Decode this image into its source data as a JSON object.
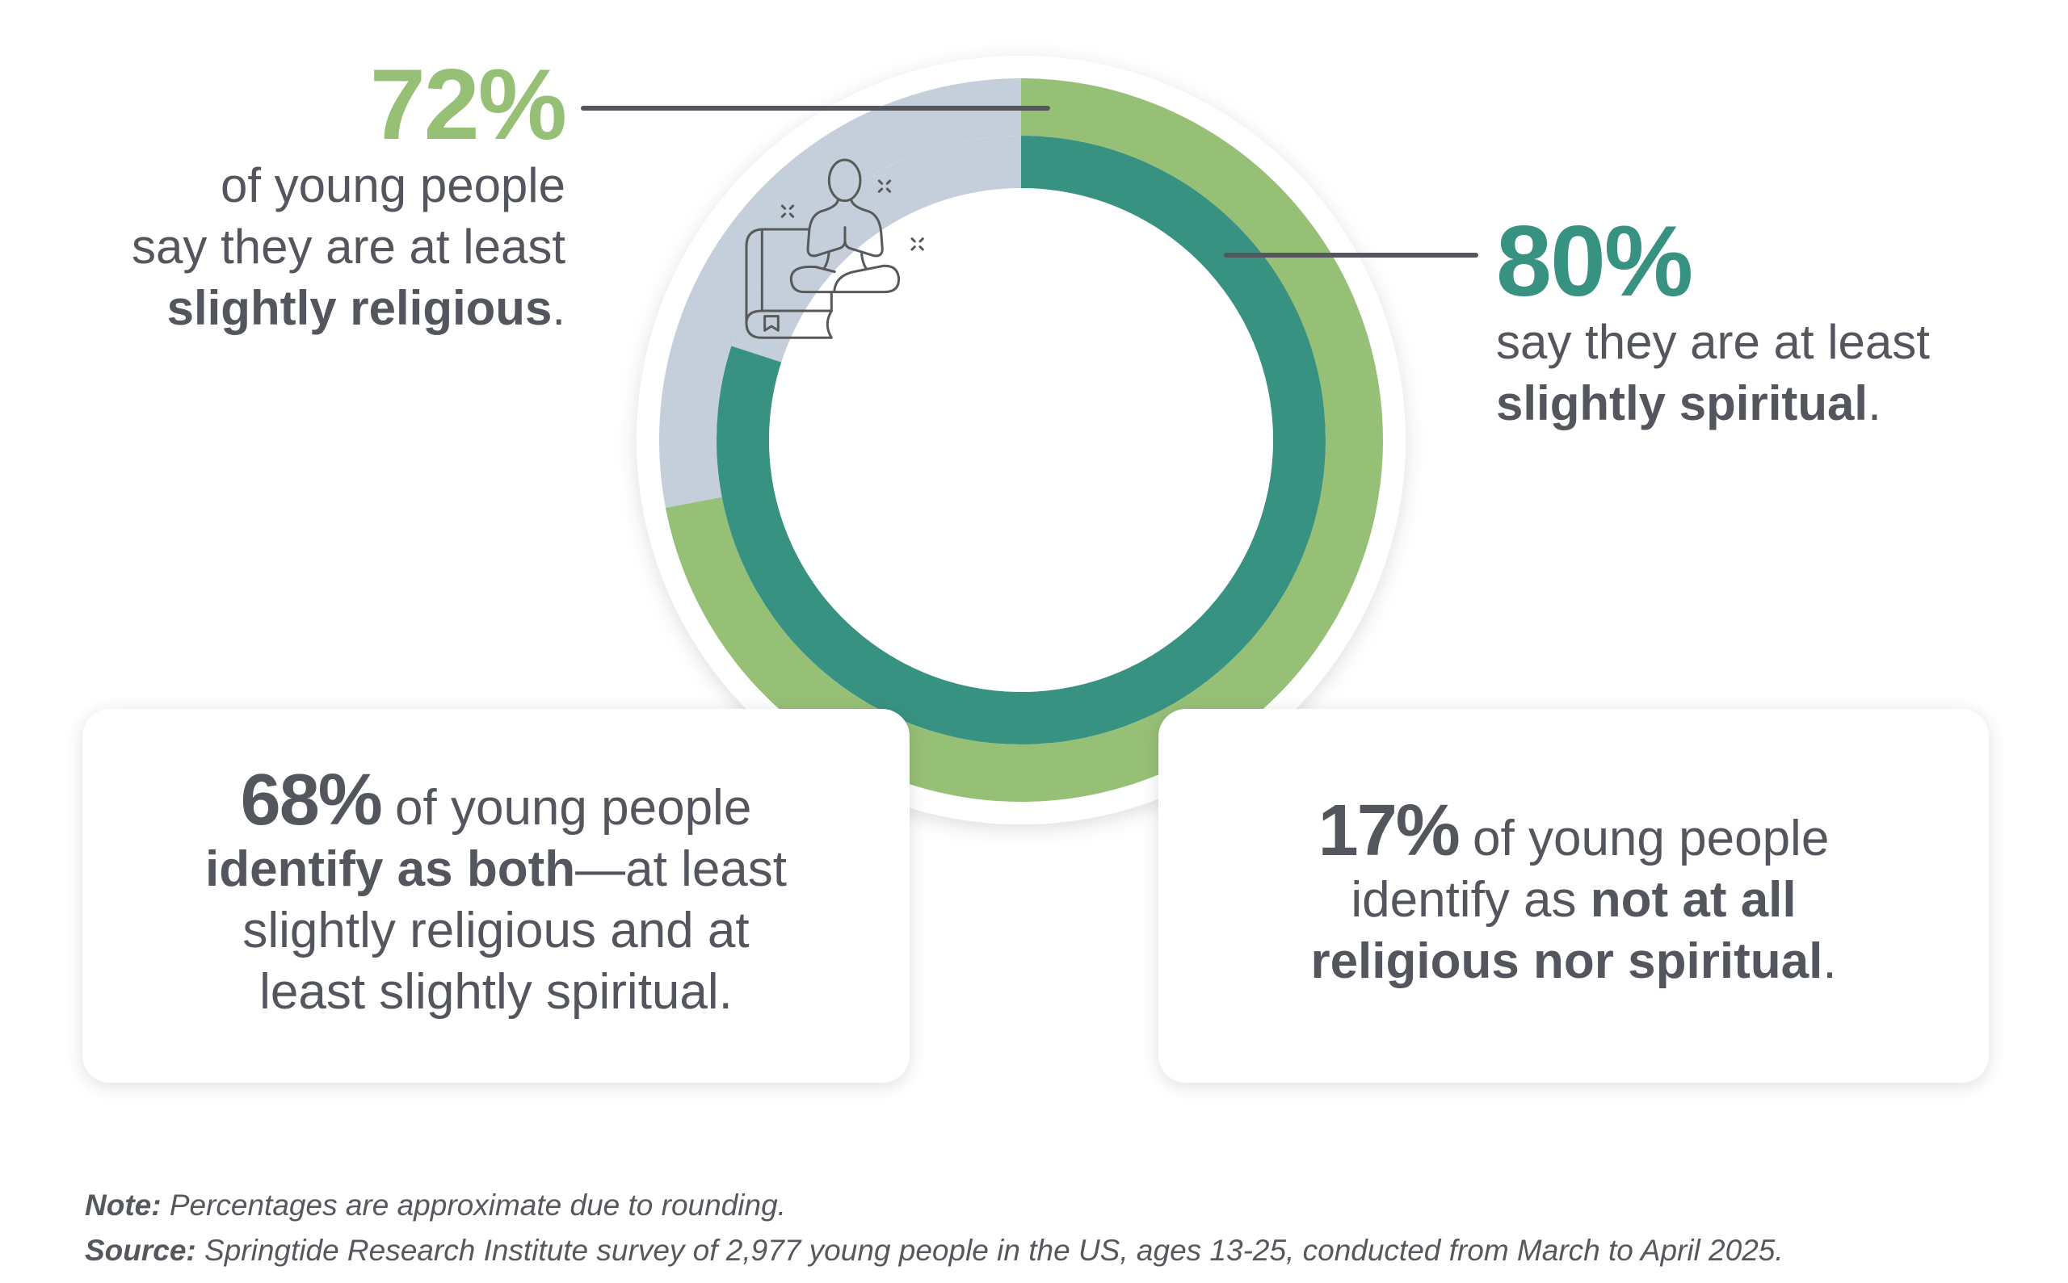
{
  "chart_data": {
    "type": "donut",
    "rings": [
      {
        "name": "Slightly religious",
        "value": 72,
        "color": "#97c077",
        "remainder_color": "#c5cfdc"
      },
      {
        "name": "Slightly spiritual",
        "value": 80,
        "color": "#389282",
        "remainder_color": "#c5cfdc"
      }
    ],
    "center_icon": "meditating-person-with-book-icon"
  },
  "left_stat": {
    "value": "72%",
    "line1": "of young people",
    "line2": "say they are at least",
    "bold": "slightly religious",
    "end": "."
  },
  "right_stat": {
    "value": "80%",
    "line1": "say they are at least",
    "bold": "slightly spiritual",
    "end": "."
  },
  "card_both": {
    "value": "68%",
    "text1": " of young people",
    "bold": "identify as both",
    "text2": "—at least",
    "line3": "slightly religious and at",
    "line4": "least slightly spiritual."
  },
  "card_neither": {
    "value": "17%",
    "text1": " of young people",
    "text2": "identify as ",
    "bold1": "not at all",
    "bold2": "religious nor spiritual",
    "end": "."
  },
  "footer": {
    "note_label": "Note:",
    "note_text": " Percentages are approximate due to rounding.",
    "source_label": "Source:",
    "source_text": " Springtide Research Institute survey of 2,977 young people in the US, ages 13-25, conducted from March to April 2025."
  }
}
